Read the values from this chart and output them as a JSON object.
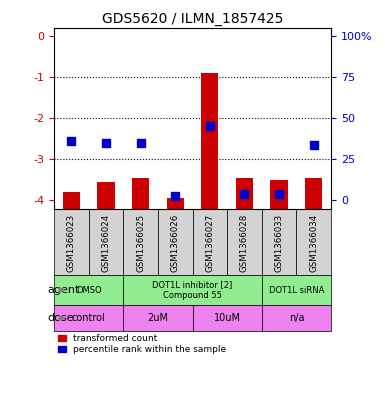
{
  "title": "GDS5620 / ILMN_1857425",
  "samples": [
    "GSM1366023",
    "GSM1366024",
    "GSM1366025",
    "GSM1366026",
    "GSM1366027",
    "GSM1366028",
    "GSM1366033",
    "GSM1366034"
  ],
  "red_values": [
    -3.8,
    -3.55,
    -3.45,
    -3.95,
    -0.9,
    -3.45,
    -3.5,
    -3.45
  ],
  "blue_values": [
    -2.55,
    -2.6,
    -2.6,
    -3.9,
    -2.2,
    -3.85,
    -3.85,
    -2.65
  ],
  "ylim": [
    -4.2,
    0.2
  ],
  "yticks": [
    0,
    -1,
    -2,
    -3,
    -4
  ],
  "ytick_labels": [
    "0",
    "-1",
    "-2",
    "-3",
    "-4"
  ],
  "agent_groups": [
    {
      "label": "DMSO",
      "start": 0,
      "end": 1,
      "color": "#90EE90"
    },
    {
      "label": "DOT1L inhibitor [2]\nCompound 55",
      "start": 2,
      "end": 5,
      "color": "#90EE90"
    },
    {
      "label": "DOT1L siRNA",
      "start": 6,
      "end": 7,
      "color": "#90EE90"
    }
  ],
  "dose_groups": [
    {
      "label": "control",
      "start": 0,
      "end": 1,
      "color": "#EE82EE"
    },
    {
      "label": "2uM",
      "start": 2,
      "end": 3,
      "color": "#EE82EE"
    },
    {
      "label": "10uM",
      "start": 4,
      "end": 5,
      "color": "#EE82EE"
    },
    {
      "label": "n/a",
      "start": 6,
      "end": 7,
      "color": "#EE82EE"
    }
  ],
  "legend_red": "transformed count",
  "legend_blue": "percentile rank within the sample",
  "xlabel_agent": "agent",
  "xlabel_dose": "dose",
  "bar_color": "#CC0000",
  "dot_color": "#0000CC",
  "axis_label_color_left": "#CC0000",
  "axis_label_color_right": "#0000CC",
  "bg_color": "#FFFFFF",
  "sample_bg_color": "#D3D3D3",
  "bar_width": 0.5,
  "dot_size": 30,
  "grid_yticks": [
    -1,
    -2,
    -3
  ],
  "right_ytick_positions": [
    0,
    -1,
    -2,
    -3,
    -4
  ],
  "right_ytick_labels": [
    "100%",
    "75",
    "50",
    "25",
    "0"
  ]
}
